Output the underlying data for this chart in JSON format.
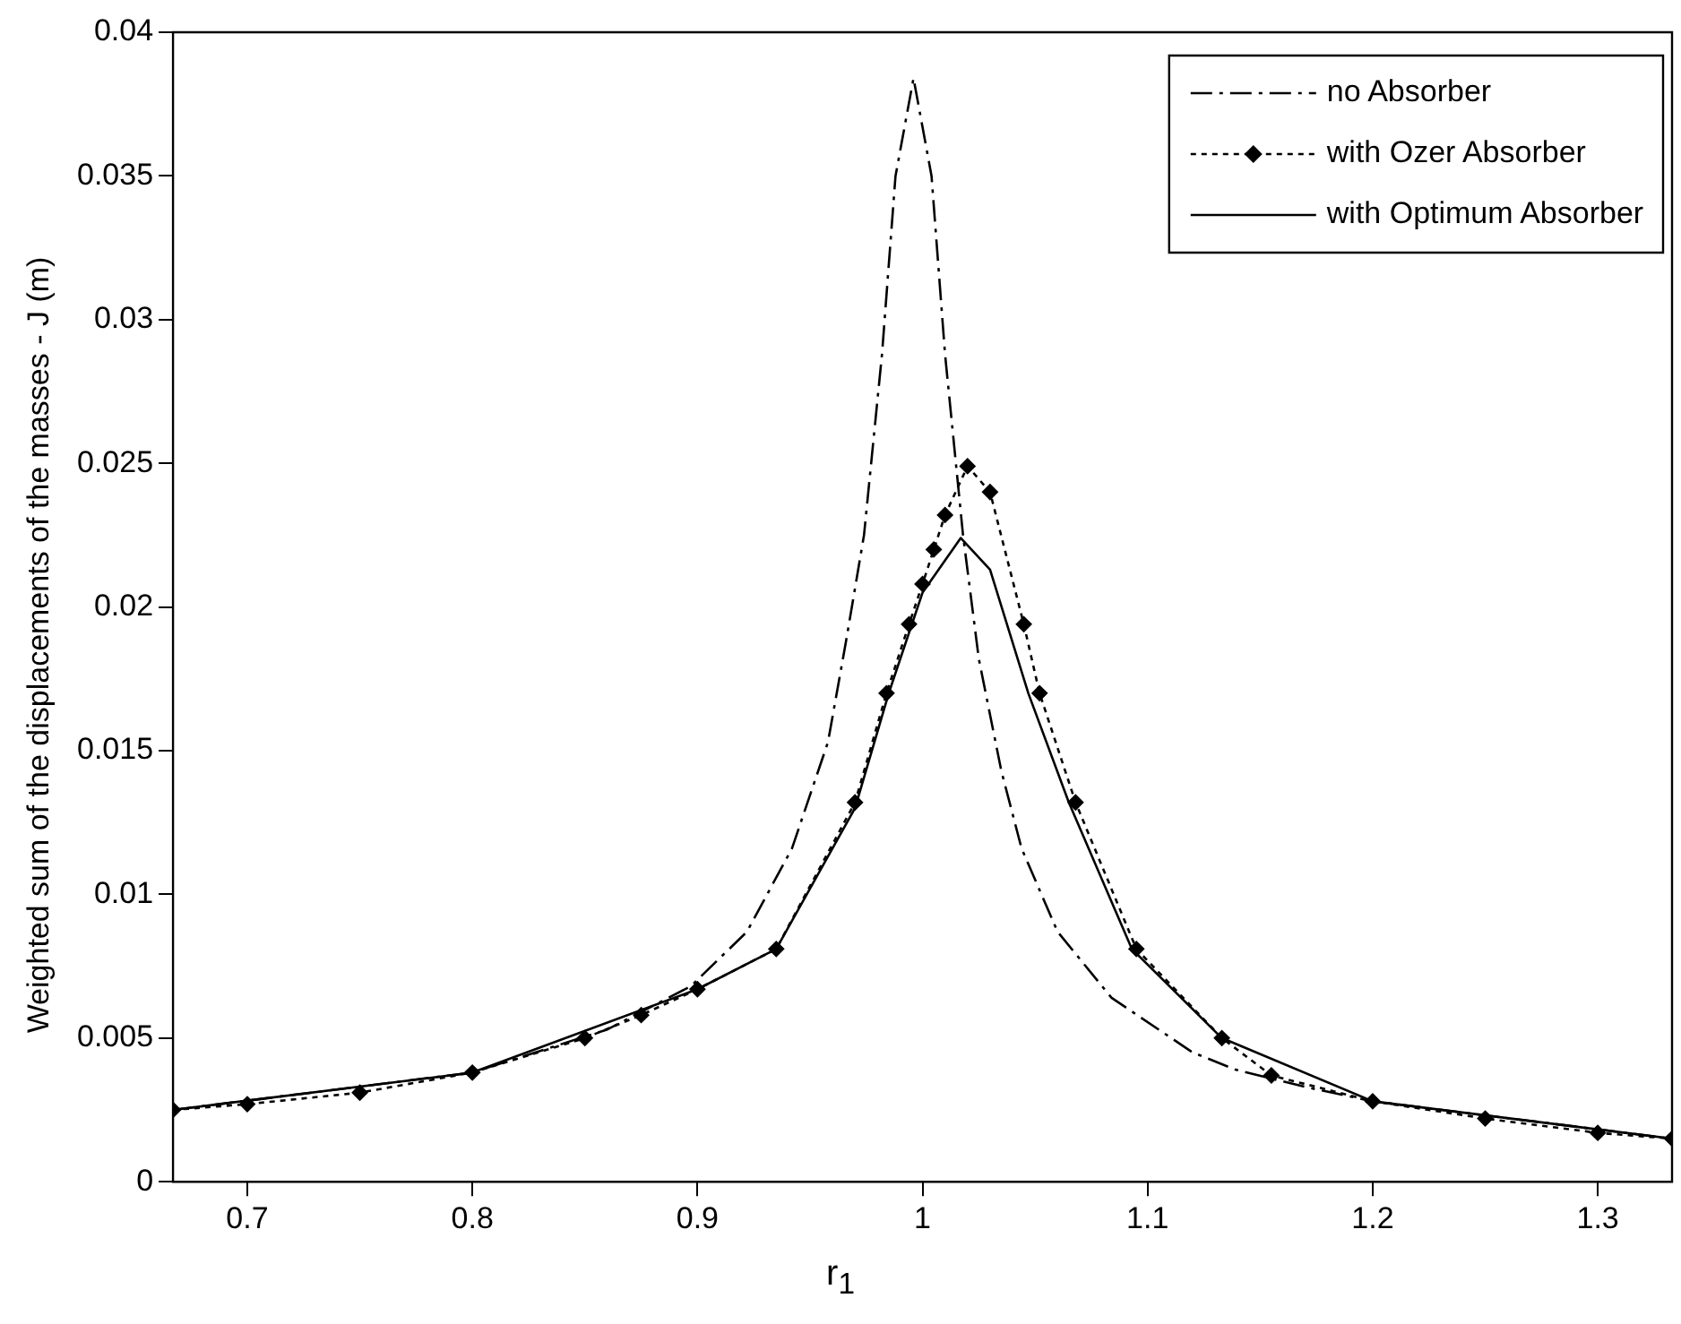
{
  "chart_data": {
    "type": "line",
    "xlabel": "r$_{1}$",
    "ylabel": "Weighted sum of the displacements of the masses - J (m)",
    "xlim": [
      0.667,
      1.333
    ],
    "xticks": [
      0.7,
      0.8,
      0.9,
      1,
      1.1,
      1.2,
      1.3
    ],
    "ylim": [
      0,
      0.04
    ],
    "yticks": [
      0,
      0.005,
      0.01,
      0.015,
      0.02,
      0.025,
      0.03,
      0.035,
      0.04
    ],
    "grid": false,
    "legend": "top right",
    "series": [
      {
        "name": "no Absorber",
        "color": "#000000",
        "line_style": "dashed",
        "marker": "none",
        "x": [
          0.667,
          0.8,
          0.86,
          0.897,
          0.922,
          0.942,
          0.958,
          0.966,
          0.974,
          0.982,
          0.988,
          0.996,
          1.004,
          1.01,
          1.018,
          1.025,
          1.035,
          1.044,
          1.06,
          1.084,
          1.12,
          1.139,
          1.17,
          1.2,
          1.333
        ],
        "values": [
          0.0025,
          0.0038,
          0.0053,
          0.0068,
          0.0087,
          0.0116,
          0.0153,
          0.0188,
          0.0225,
          0.0288,
          0.035,
          0.0384,
          0.035,
          0.0288,
          0.0225,
          0.0182,
          0.0143,
          0.0116,
          0.0087,
          0.0064,
          0.0045,
          0.0039,
          0.0033,
          0.0028,
          0.0015
        ]
      },
      {
        "name": "with Ozer Absorber",
        "color": "#000000",
        "line_style": "dotted",
        "marker": "diamond",
        "x": [
          0.667,
          0.7,
          0.75,
          0.8,
          0.85,
          0.875,
          0.9,
          0.935,
          0.97,
          0.984,
          0.994,
          1.0,
          1.005,
          1.01,
          1.02,
          1.03,
          1.045,
          1.052,
          1.068,
          1.095,
          1.133,
          1.155,
          1.2,
          1.25,
          1.3,
          1.333
        ],
        "values": [
          0.0025,
          0.0027,
          0.0031,
          0.0038,
          0.005,
          0.0058,
          0.0067,
          0.0081,
          0.0132,
          0.017,
          0.0194,
          0.0208,
          0.022,
          0.0232,
          0.0249,
          0.024,
          0.0194,
          0.017,
          0.0132,
          0.0081,
          0.005,
          0.0037,
          0.0028,
          0.0022,
          0.0017,
          0.0015
        ]
      },
      {
        "name": "with Optimum Absorber",
        "color": "#000000",
        "line_style": "solid",
        "marker": "none",
        "x": [
          0.667,
          0.8,
          0.9,
          0.935,
          0.97,
          0.985,
          1.0,
          1.017,
          1.03,
          1.047,
          1.065,
          1.093,
          1.133,
          1.2,
          1.333
        ],
        "values": [
          0.0025,
          0.0038,
          0.0067,
          0.0081,
          0.013,
          0.017,
          0.0205,
          0.0224,
          0.0213,
          0.017,
          0.0132,
          0.0081,
          0.005,
          0.0028,
          0.0015
        ]
      }
    ]
  }
}
